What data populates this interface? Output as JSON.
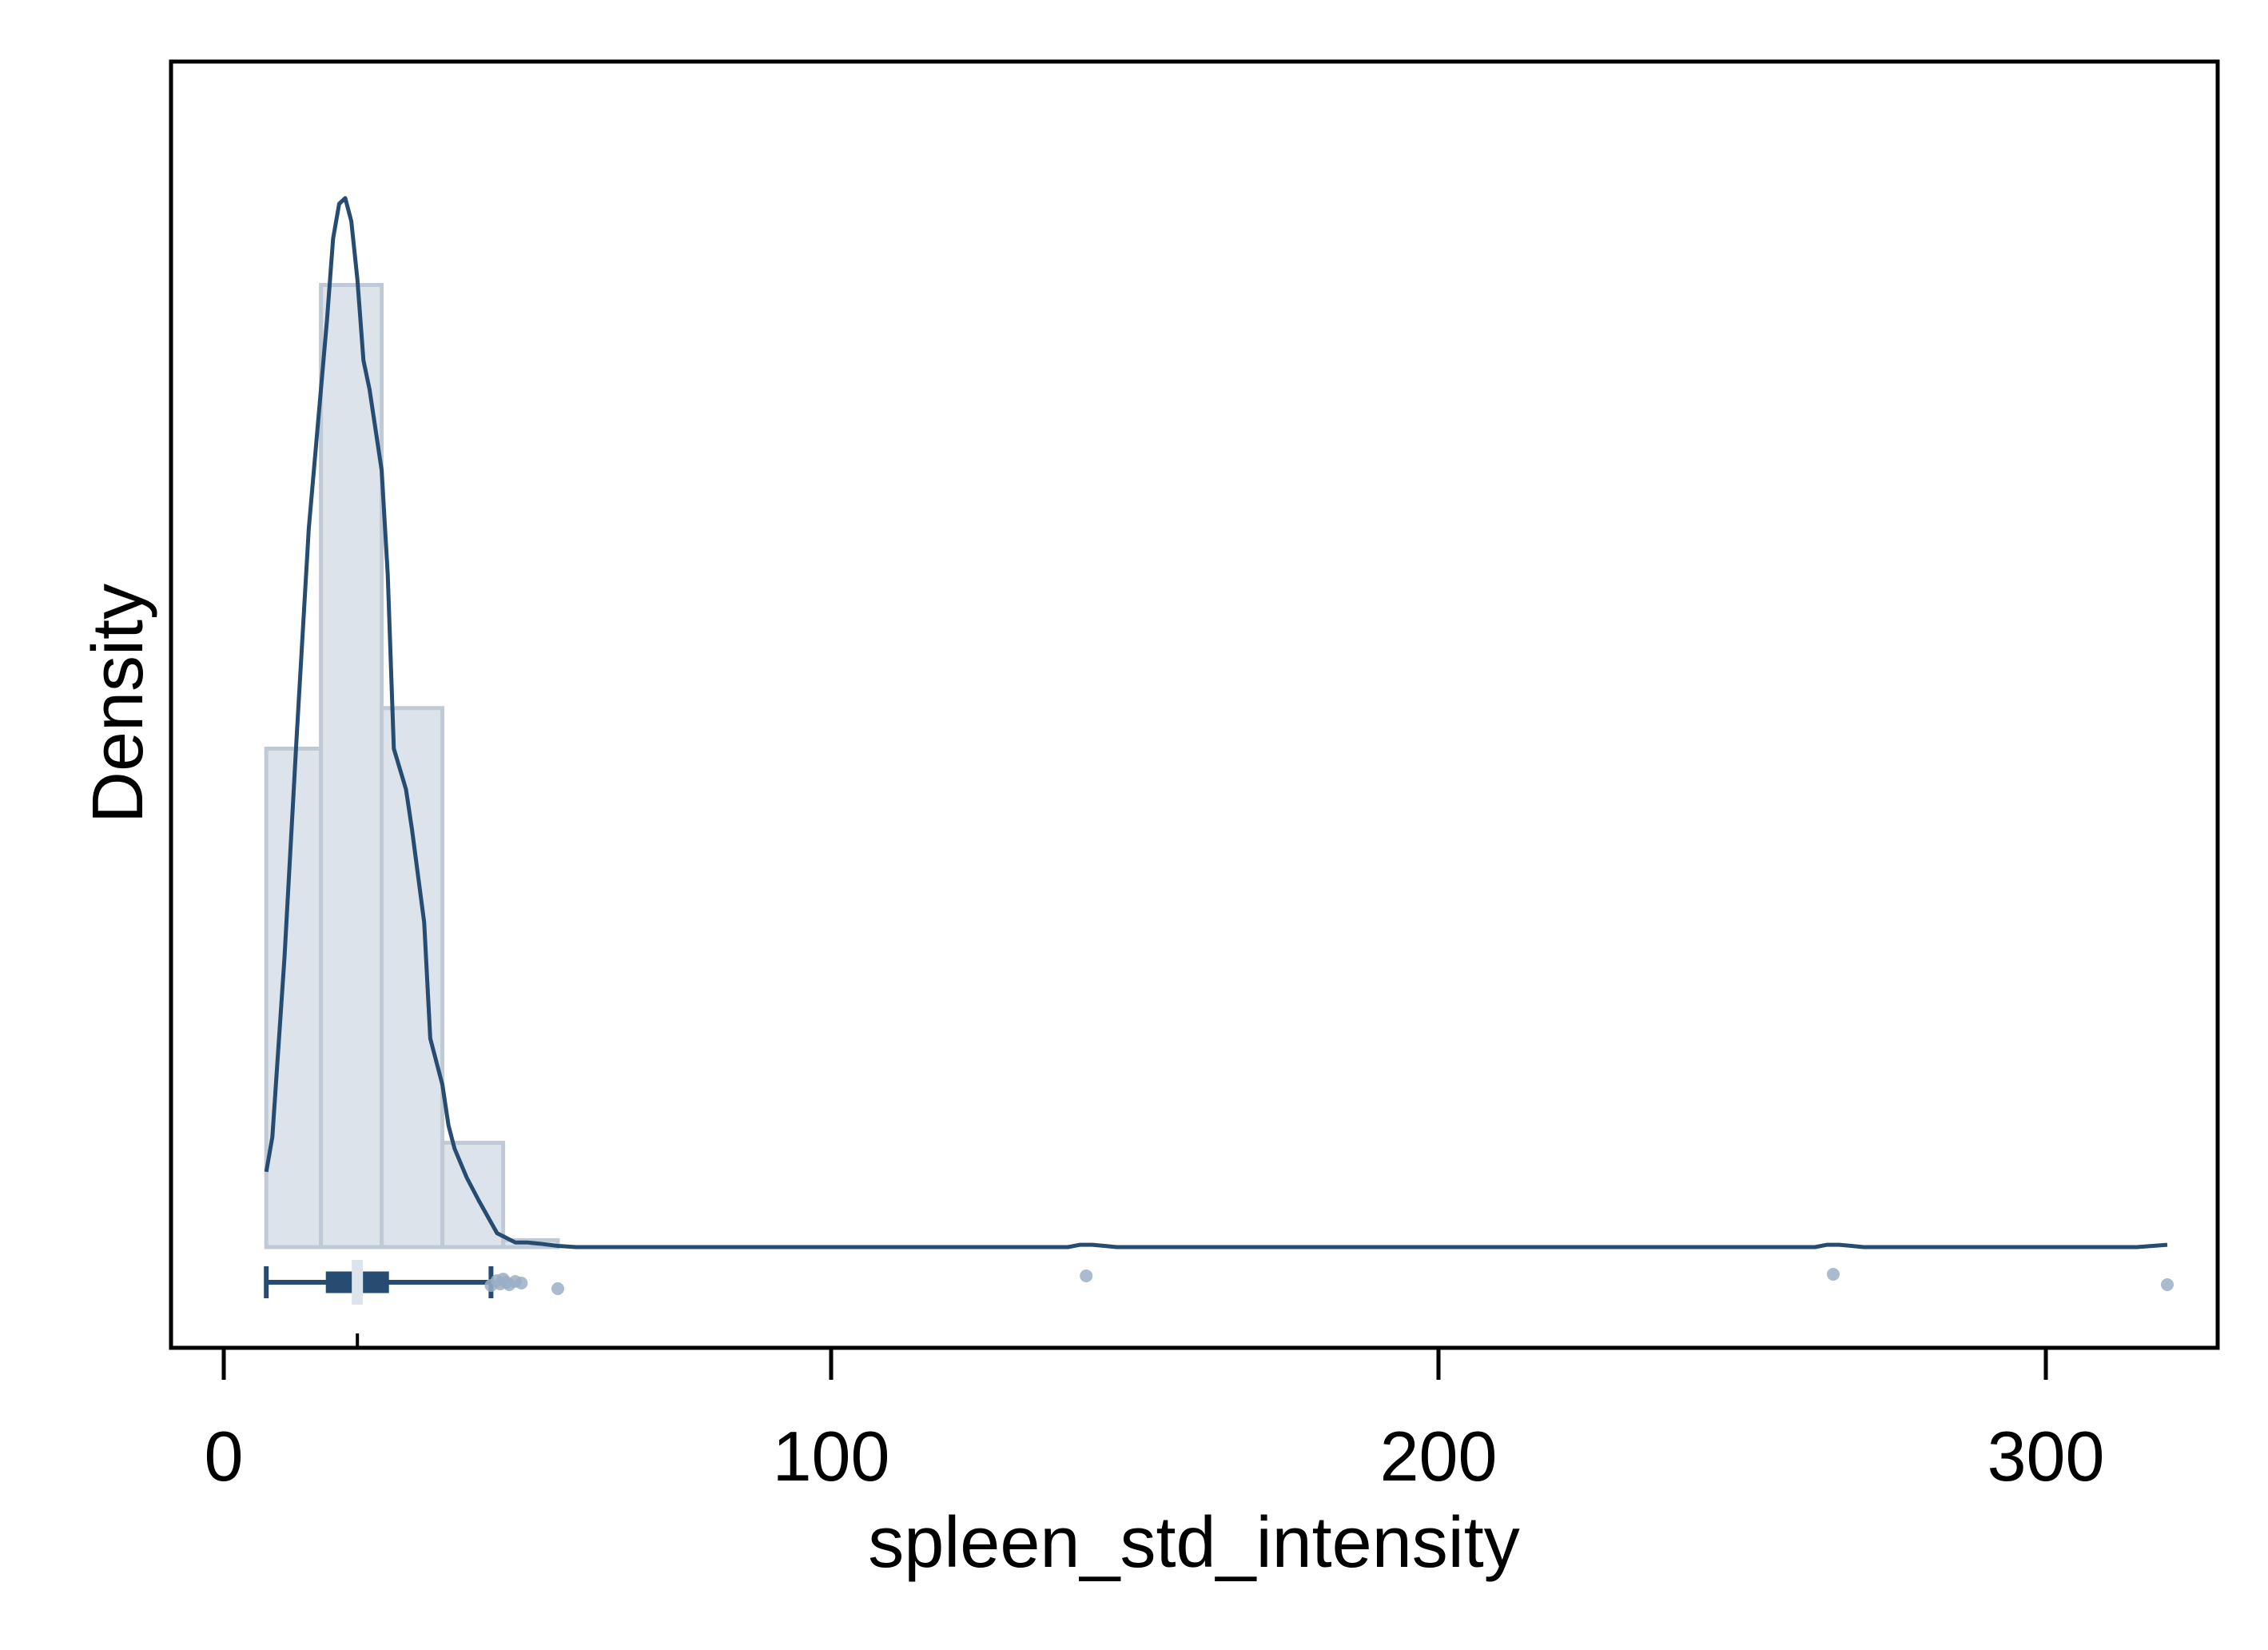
{
  "chart_data": {
    "type": "histogram",
    "xlabel": "spleen_std_intensity",
    "ylabel": "Density",
    "xlim": [
      -8,
      330
    ],
    "x_ticks": [
      0,
      100,
      200,
      300
    ],
    "y_ticks_shown": false,
    "grid": false,
    "legend": "none",
    "histogram": {
      "bins": [
        {
          "x0": 7,
          "x1": 16,
          "height": 0.43
        },
        {
          "x0": 16,
          "x1": 26,
          "height": 0.83
        },
        {
          "x0": 26,
          "x1": 36,
          "height": 0.465
        },
        {
          "x0": 36,
          "x1": 46,
          "height": 0.09
        },
        {
          "x0": 46,
          "x1": 55,
          "height": 0.006
        }
      ]
    },
    "density_curve": {
      "x": [
        7,
        8,
        10,
        12,
        14,
        16,
        17,
        18,
        19,
        20,
        21,
        22,
        23,
        24,
        26,
        27,
        28,
        30,
        31,
        33,
        34,
        36,
        37,
        38,
        40,
        42,
        45,
        48,
        50,
        52,
        55,
        58,
        60,
        80,
        100,
        120,
        139,
        141,
        143,
        145,
        147,
        160,
        200,
        240,
        262,
        264,
        266,
        268,
        270,
        280,
        300,
        315,
        320
      ],
      "y": [
        0.065,
        0.095,
        0.25,
        0.44,
        0.62,
        0.74,
        0.8,
        0.87,
        0.9,
        0.905,
        0.885,
        0.835,
        0.765,
        0.74,
        0.67,
        0.58,
        0.43,
        0.395,
        0.36,
        0.28,
        0.18,
        0.14,
        0.105,
        0.085,
        0.06,
        0.04,
        0.012,
        0.004,
        0.004,
        0.003,
        0.001,
        0,
        0,
        0,
        0,
        0,
        0,
        0.002,
        0.002,
        0.001,
        0,
        0,
        0,
        0,
        0,
        0.002,
        0.002,
        0.001,
        0,
        0,
        0,
        0,
        0.002
      ]
    },
    "boxplot": {
      "whisker_low": 7,
      "q1": 17,
      "median": 22,
      "q3": 27,
      "whisker_high": 44
    },
    "outliers": [
      44,
      45,
      45.5,
      46,
      46.5,
      47,
      48,
      49,
      55,
      142,
      265,
      320
    ]
  },
  "colors": {
    "hist_fill": "#dce3ea",
    "hist_edge": "#bfcad6",
    "curve": "#274c72",
    "box": "#274c72",
    "outlier": "#9aafc4",
    "frame": "#000000"
  }
}
